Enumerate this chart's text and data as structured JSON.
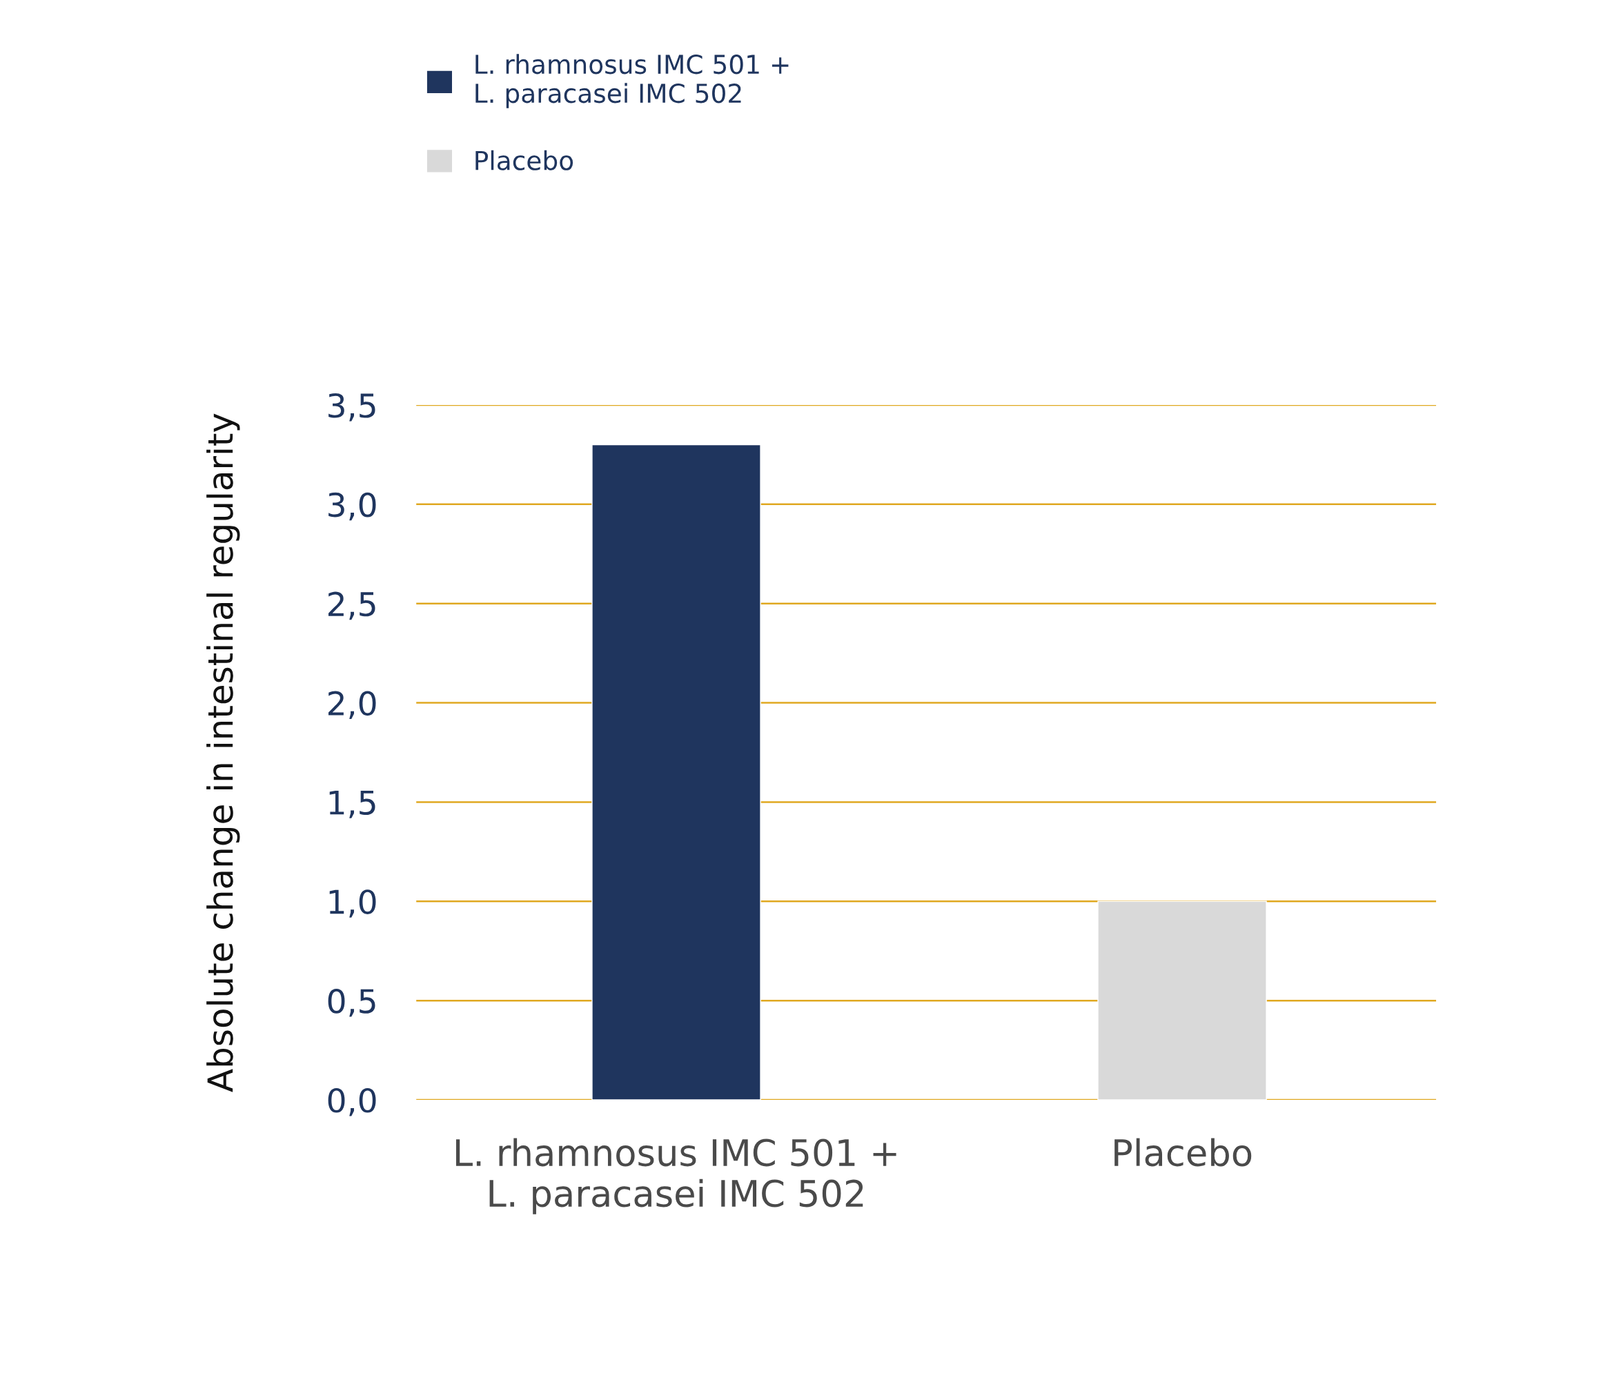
{
  "chart_data": {
    "type": "bar",
    "ylabel": "Absolute change in intestinal regularity",
    "categories": [
      "L. rhamnosus IMC 501 +\nL. paracasei IMC 502",
      "Placebo"
    ],
    "series": [
      {
        "name": "L. rhamnosus IMC 501 +\nL. paracasei IMC 502",
        "color": "#1f355e",
        "values": [
          3.3,
          null
        ]
      },
      {
        "name": "Placebo",
        "color": "#d9d9d9",
        "values": [
          null,
          1.0
        ]
      }
    ],
    "ylim": [
      0,
      3.5
    ],
    "yticks": [
      {
        "value": 0,
        "label": "0,0"
      },
      {
        "value": 0.5,
        "label": "0,5"
      },
      {
        "value": 1,
        "label": "1,0"
      },
      {
        "value": 1.5,
        "label": "1,5"
      },
      {
        "value": 2,
        "label": "2,0"
      },
      {
        "value": 2.5,
        "label": "2,5"
      },
      {
        "value": 3,
        "label": "3,0"
      },
      {
        "value": 3.5,
        "label": "3,5"
      }
    ],
    "grid": "y",
    "legend": "top left"
  }
}
